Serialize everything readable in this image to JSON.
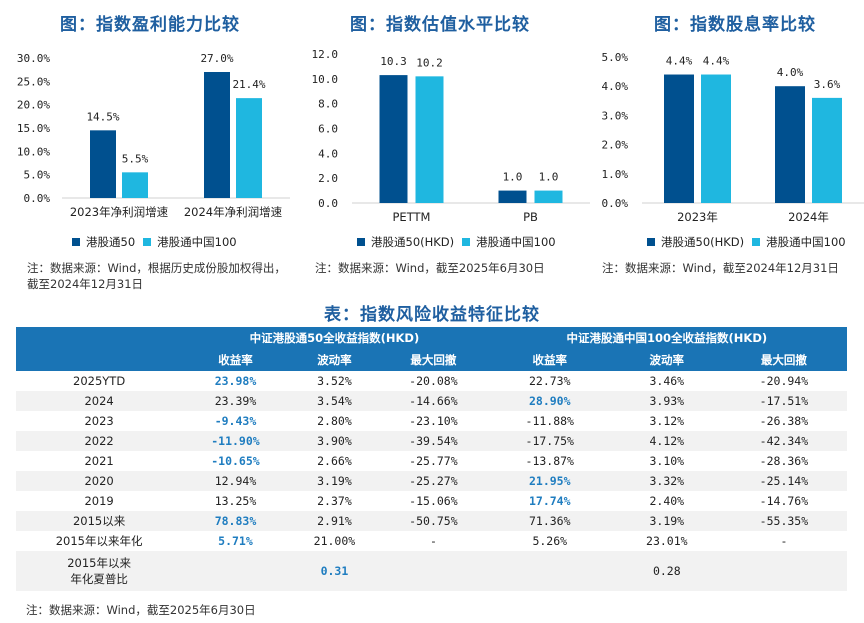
{
  "colors": {
    "series1": "#00508f",
    "series2": "#1fb7e0",
    "title": "#1f5fa0",
    "table_header": "#1a74b5",
    "highlight": "#1f7dc0"
  },
  "chart_data": [
    {
      "type": "bar",
      "title": "图：指数盈利能力比较",
      "categories": [
        "2023年净利润增速",
        "2024年净利润增速"
      ],
      "series": [
        {
          "name": "港股通50",
          "values": [
            14.5,
            27.0
          ],
          "labels": [
            "14.5%",
            "27.0%"
          ]
        },
        {
          "name": "港股通中国100",
          "values": [
            5.5,
            21.4
          ],
          "labels": [
            "5.5%",
            "21.4%"
          ]
        }
      ],
      "ylim": [
        0,
        30
      ],
      "yticks": [
        "0.0%",
        "5.0%",
        "10.0%",
        "15.0%",
        "20.0%",
        "25.0%",
        "30.0%"
      ],
      "xlabel": "",
      "ylabel": "",
      "legend": "bottom",
      "note": "注：数据来源：Wind，根据历史成份股加权得出，截至2024年12月31日"
    },
    {
      "type": "bar",
      "title": "图：指数估值水平比较",
      "categories": [
        "PETTM",
        "PB"
      ],
      "series": [
        {
          "name": "港股通50(HKD)",
          "values": [
            10.3,
            1.0
          ],
          "labels": [
            "10.3",
            "1.0"
          ]
        },
        {
          "name": "港股通中国100",
          "values": [
            10.2,
            1.0
          ],
          "labels": [
            "10.2",
            "1.0"
          ]
        }
      ],
      "ylim": [
        0,
        12
      ],
      "yticks": [
        "0.0",
        "2.0",
        "4.0",
        "6.0",
        "8.0",
        "10.0",
        "12.0"
      ],
      "xlabel": "",
      "ylabel": "",
      "legend": "bottom",
      "note": "注：数据来源：Wind，截至2025年6月30日"
    },
    {
      "type": "bar",
      "title": "图：指数股息率比较",
      "categories": [
        "2023年",
        "2024年"
      ],
      "series": [
        {
          "name": "港股通50(HKD)",
          "values": [
            4.4,
            4.0
          ],
          "labels": [
            "4.4%",
            "4.0%"
          ]
        },
        {
          "name": "港股通中国100",
          "values": [
            4.4,
            3.6
          ],
          "labels": [
            "4.4%",
            "3.6%"
          ]
        }
      ],
      "ylim": [
        0,
        5
      ],
      "yticks": [
        "0.0%",
        "1.0%",
        "2.0%",
        "3.0%",
        "4.0%",
        "5.0%"
      ],
      "xlabel": "",
      "ylabel": "",
      "legend": "bottom",
      "note": "注：数据来源：Wind，截至2024年12月31日"
    },
    {
      "type": "table",
      "title": "表：指数风险收益特征比较",
      "groups": [
        "中证港股通50全收益指数(HKD)",
        "中证港股通中国100全收益指数(HKD)"
      ],
      "columns": [
        "收益率",
        "波动率",
        "最大回撤",
        "收益率",
        "波动率",
        "最大回撤"
      ],
      "rows": [
        {
          "label": "2025YTD",
          "cells": [
            "23.98%",
            "3.52%",
            "-20.08%",
            "22.73%",
            "3.46%",
            "-20.94%"
          ],
          "hl": [
            0
          ]
        },
        {
          "label": "2024",
          "cells": [
            "23.39%",
            "3.54%",
            "-14.66%",
            "28.90%",
            "3.93%",
            "-17.51%"
          ],
          "hl": [
            3
          ]
        },
        {
          "label": "2023",
          "cells": [
            "-9.43%",
            "2.80%",
            "-23.10%",
            "-11.88%",
            "3.12%",
            "-26.38%"
          ],
          "hl": [
            0
          ]
        },
        {
          "label": "2022",
          "cells": [
            "-11.90%",
            "3.90%",
            "-39.54%",
            "-17.75%",
            "4.12%",
            "-42.34%"
          ],
          "hl": [
            0
          ]
        },
        {
          "label": "2021",
          "cells": [
            "-10.65%",
            "2.66%",
            "-25.77%",
            "-13.87%",
            "3.10%",
            "-28.36%"
          ],
          "hl": [
            0
          ]
        },
        {
          "label": "2020",
          "cells": [
            "12.94%",
            "3.19%",
            "-25.27%",
            "21.95%",
            "3.32%",
            "-25.14%"
          ],
          "hl": [
            3
          ]
        },
        {
          "label": "2019",
          "cells": [
            "13.25%",
            "2.37%",
            "-15.06%",
            "17.74%",
            "2.40%",
            "-14.76%"
          ],
          "hl": [
            3
          ]
        },
        {
          "label": "2015以来",
          "cells": [
            "78.83%",
            "2.91%",
            "-50.75%",
            "71.36%",
            "3.19%",
            "-55.35%"
          ],
          "hl": [
            0
          ]
        },
        {
          "label": "2015年以来年化",
          "cells": [
            "5.71%",
            "21.00%",
            "-",
            "5.26%",
            "23.01%",
            "-"
          ],
          "hl": [
            0
          ]
        },
        {
          "label": "2015年以来\n年化夏普比",
          "cells": [
            "",
            "0.31",
            "",
            "",
            "0.28",
            ""
          ],
          "hl": [
            1
          ]
        }
      ],
      "note": "注：数据来源：Wind，截至2025年6月30日"
    }
  ]
}
